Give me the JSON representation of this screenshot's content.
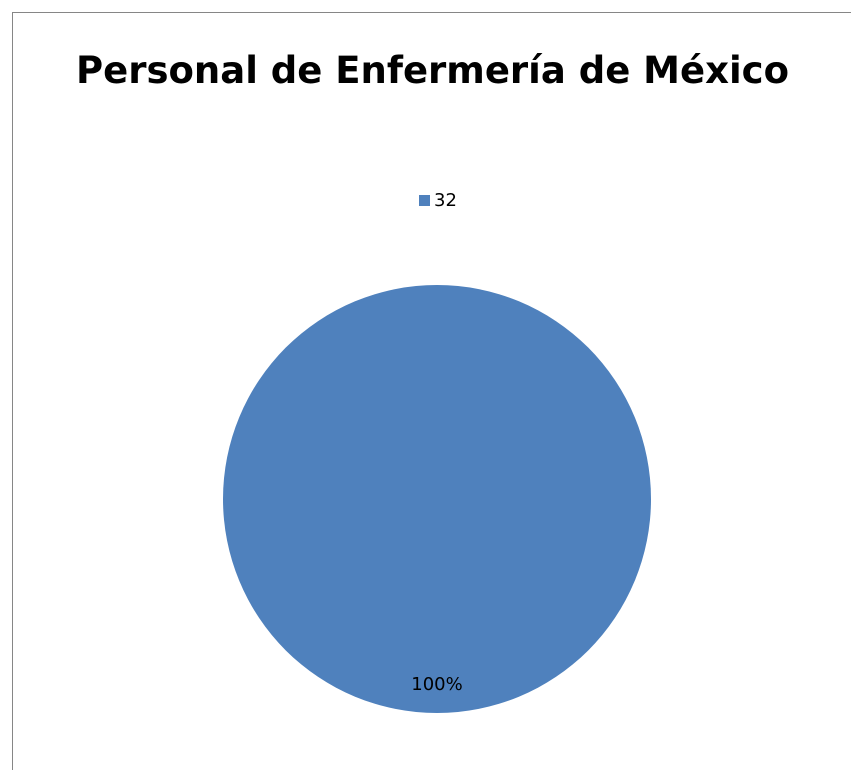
{
  "chart_data": {
    "type": "pie",
    "title": "Personal de Enfermería de México",
    "categories": [
      "32"
    ],
    "values": [
      1
    ],
    "percent_labels": [
      "100%"
    ],
    "legend": {
      "placement": "top-center",
      "entries": [
        "32"
      ]
    },
    "colors": {
      "slice": "#4F81BD",
      "frame_border": "#868686",
      "background": "#FFFFFF",
      "label_text": "#000000"
    }
  }
}
